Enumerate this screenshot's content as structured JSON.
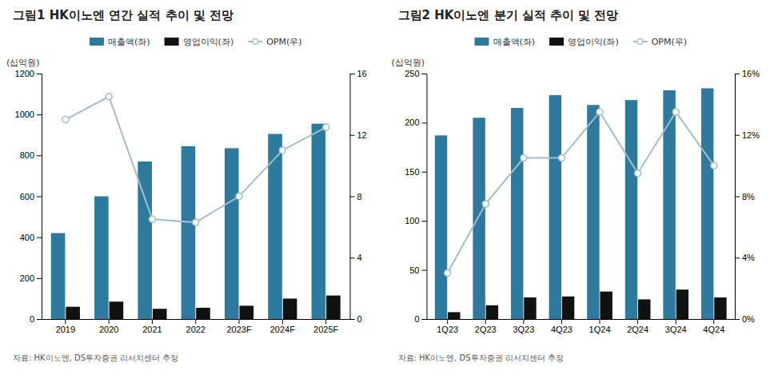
{
  "chart_data": [
    {
      "type": "bar",
      "title": "그림1 HK이노엔 연간 실적 추이 및 전망",
      "ylabel": "(십억원)",
      "annotations": [
        "자료: HK이노엔, DS투자증권 리서치센터 추정"
      ],
      "categories": [
        "2019",
        "2020",
        "2021",
        "2022",
        "2023F",
        "2024F",
        "2025F"
      ],
      "series": [
        {
          "name": "매출액(좌)",
          "type": "bar",
          "color": "#2e7a9e",
          "values": [
            420,
            600,
            770,
            845,
            835,
            905,
            955
          ]
        },
        {
          "name": "영업이익(좌)",
          "type": "bar",
          "color": "#111111",
          "values": [
            60,
            85,
            50,
            55,
            65,
            100,
            115
          ]
        },
        {
          "name": "OPM(우)",
          "type": "line",
          "axis": "y2",
          "marker": "circle",
          "color": "#a0bece",
          "values": [
            13.0,
            14.5,
            6.5,
            6.3,
            8.0,
            11.0,
            12.5
          ]
        }
      ],
      "ylim": [
        0,
        1200
      ],
      "yticks": [
        0,
        200,
        400,
        600,
        800,
        1000,
        1200
      ],
      "y2lim": [
        0,
        16
      ],
      "y2ticks": [
        0,
        4,
        8,
        12,
        16
      ],
      "grid": false,
      "legend": "top"
    },
    {
      "type": "bar",
      "title": "그림2 HK이노엔 분기 실적 추이 및 전망",
      "ylabel": "(십억원)",
      "annotations": [
        "자료: HK이노엔, DS투자증권 리서치센터 추정"
      ],
      "categories": [
        "1Q23",
        "2Q23",
        "3Q23",
        "4Q23",
        "1Q24",
        "2Q24",
        "3Q24",
        "4Q24"
      ],
      "series": [
        {
          "name": "매출액(좌)",
          "type": "bar",
          "color": "#2e7a9e",
          "values": [
            187,
            205,
            215,
            228,
            218,
            223,
            233,
            235
          ]
        },
        {
          "name": "영업이익(좌)",
          "type": "bar",
          "color": "#111111",
          "values": [
            7,
            14,
            22,
            23,
            28,
            20,
            30,
            22
          ]
        },
        {
          "name": "OPM(우)",
          "type": "line",
          "axis": "y2",
          "marker": "circle",
          "color": "#a0bece",
          "values": [
            3.0,
            7.5,
            10.5,
            10.5,
            13.5,
            9.5,
            13.5,
            10.0
          ]
        }
      ],
      "ylim": [
        0,
        250
      ],
      "yticks": [
        0,
        50,
        100,
        150,
        200,
        250
      ],
      "y2lim": [
        0,
        16
      ],
      "y2ticks": [
        {
          "value": 0,
          "label": "0%"
        },
        {
          "value": 4,
          "label": "4%"
        },
        {
          "value": 8,
          "label": "8%"
        },
        {
          "value": 12,
          "label": "12%"
        },
        {
          "value": 16,
          "label": "16%"
        }
      ],
      "grid": false,
      "legend": "top"
    }
  ]
}
